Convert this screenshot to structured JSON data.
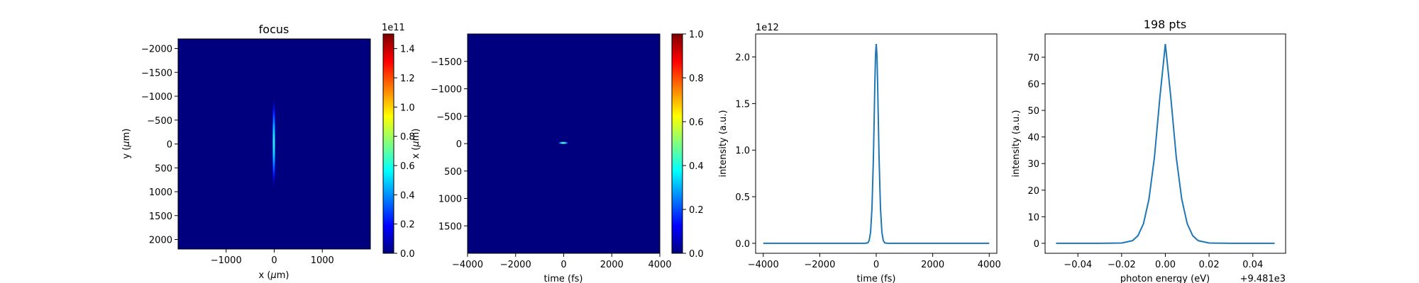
{
  "colors": {
    "line": "#1f77b4",
    "background_map": "#00007f",
    "jet": [
      "#00007f",
      "#0000ff",
      "#007fff",
      "#00ffff",
      "#7fff7f",
      "#ffff00",
      "#ff7f00",
      "#ff0000",
      "#7f0000"
    ]
  },
  "chart_data": [
    {
      "type": "heatmap",
      "title": "focus",
      "xlabel": "x ($\\mu$m)",
      "ylabel": "y ($\\mu$m)",
      "xlim": [
        -2000,
        2000
      ],
      "ylim": [
        2200,
        -2200
      ],
      "xticks": [
        -1000,
        0,
        1000
      ],
      "xtick_labels": [
        "−1000",
        "0",
        "1000"
      ],
      "yticks": [
        -2000,
        -1500,
        -1000,
        -500,
        0,
        500,
        1000,
        1500,
        2000
      ],
      "ytick_labels": [
        "−2000",
        "−1500",
        "−1000",
        "−500",
        "0",
        "500",
        "1000",
        "1500",
        "2000"
      ],
      "feature": {
        "shape": "vertical-line",
        "x": 0,
        "y_extent": [
          -1000,
          1000
        ],
        "peak": 0.75
      },
      "colorbar": {
        "range": [
          0,
          1.5
        ],
        "ticks": [
          0.0,
          0.2,
          0.4,
          0.6,
          0.8,
          1.0,
          1.2,
          1.4
        ],
        "tick_labels": [
          "0.0",
          "0.2",
          "0.4",
          "0.6",
          "0.8",
          "1.0",
          "1.2",
          "1.4"
        ],
        "offset_label": "1e11"
      }
    },
    {
      "type": "heatmap",
      "title": "",
      "xlabel": "time (fs)",
      "ylabel": "x ($\\mu$m)",
      "xlim": [
        -4000,
        4000
      ],
      "ylim": [
        2000,
        -2000
      ],
      "xticks": [
        -4000,
        -2000,
        0,
        2000,
        4000
      ],
      "xtick_labels": [
        "−4000",
        "−2000",
        "0",
        "2000",
        "4000"
      ],
      "yticks": [
        -1500,
        -1000,
        -500,
        0,
        500,
        1000,
        1500
      ],
      "ytick_labels": [
        "−1500",
        "−1000",
        "−500",
        "0",
        "500",
        "1000",
        "1500"
      ],
      "feature": {
        "shape": "spot",
        "x": 0,
        "y": 0,
        "peak": 0.55
      },
      "colorbar": {
        "range": [
          0,
          1
        ],
        "ticks": [
          0.0,
          0.2,
          0.4,
          0.6,
          0.8,
          1.0
        ],
        "tick_labels": [
          "0.0",
          "0.2",
          "0.4",
          "0.6",
          "0.8",
          "1.0"
        ],
        "offset_label": ""
      }
    },
    {
      "type": "line",
      "title": "",
      "xlabel": "time (fs)",
      "ylabel": "intensity (a.u.)",
      "xlim": [
        -4270,
        4270
      ],
      "ylim": [
        -0.107,
        2.247
      ],
      "xticks": [
        -4000,
        -2000,
        0,
        2000,
        4000
      ],
      "xtick_labels": [
        "−4000",
        "−2000",
        "0",
        "2000",
        "4000"
      ],
      "yticks": [
        0.0,
        0.5,
        1.0,
        1.5,
        2.0
      ],
      "ytick_labels": [
        "0.0",
        "0.5",
        "1.0",
        "1.5",
        "2.0"
      ],
      "y_offset_label": "1e12",
      "x": [
        -4000,
        -2000,
        -1000,
        -400,
        -300,
        -250,
        -200,
        -150,
        -100,
        -75,
        -50,
        -25,
        0,
        25,
        50,
        75,
        100,
        150,
        200,
        250,
        300,
        400,
        1000,
        2000,
        4000
      ],
      "y": [
        0,
        0,
        0,
        0.0001,
        0.0048,
        0.03,
        0.12,
        0.38,
        0.92,
        1.3,
        1.7,
        2.02,
        2.14,
        2.02,
        1.7,
        1.3,
        0.92,
        0.38,
        0.12,
        0.03,
        0.0048,
        0.0001,
        0,
        0,
        0
      ]
    },
    {
      "type": "line",
      "title": "198 pts",
      "xlabel": "photon energy (eV)",
      "ylabel": "intensity (a.u.)",
      "xlim": [
        -0.055,
        0.055
      ],
      "ylim": [
        -3.75,
        78.75
      ],
      "xticks": [
        -0.04,
        -0.02,
        0.0,
        0.02,
        0.04
      ],
      "xtick_labels": [
        "−0.04",
        "−0.02",
        "0.00",
        "0.02",
        "0.04"
      ],
      "yticks": [
        0,
        10,
        20,
        30,
        40,
        50,
        60,
        70
      ],
      "ytick_labels": [
        "0",
        "10",
        "20",
        "30",
        "40",
        "50",
        "60",
        "70"
      ],
      "x_offset_label": "+9.481e3",
      "x": [
        -0.05,
        -0.03,
        -0.02,
        -0.015,
        -0.0125,
        -0.01,
        -0.0075,
        -0.005,
        -0.0025,
        0,
        0.0025,
        0.005,
        0.0075,
        0.01,
        0.0125,
        0.015,
        0.02,
        0.03,
        0.05
      ],
      "y": [
        0,
        0,
        0.1,
        1.0,
        2.9,
        7.4,
        16.6,
        32.3,
        54.9,
        75,
        54.9,
        32.3,
        16.6,
        7.4,
        2.9,
        1.0,
        0.1,
        0,
        0
      ]
    }
  ]
}
